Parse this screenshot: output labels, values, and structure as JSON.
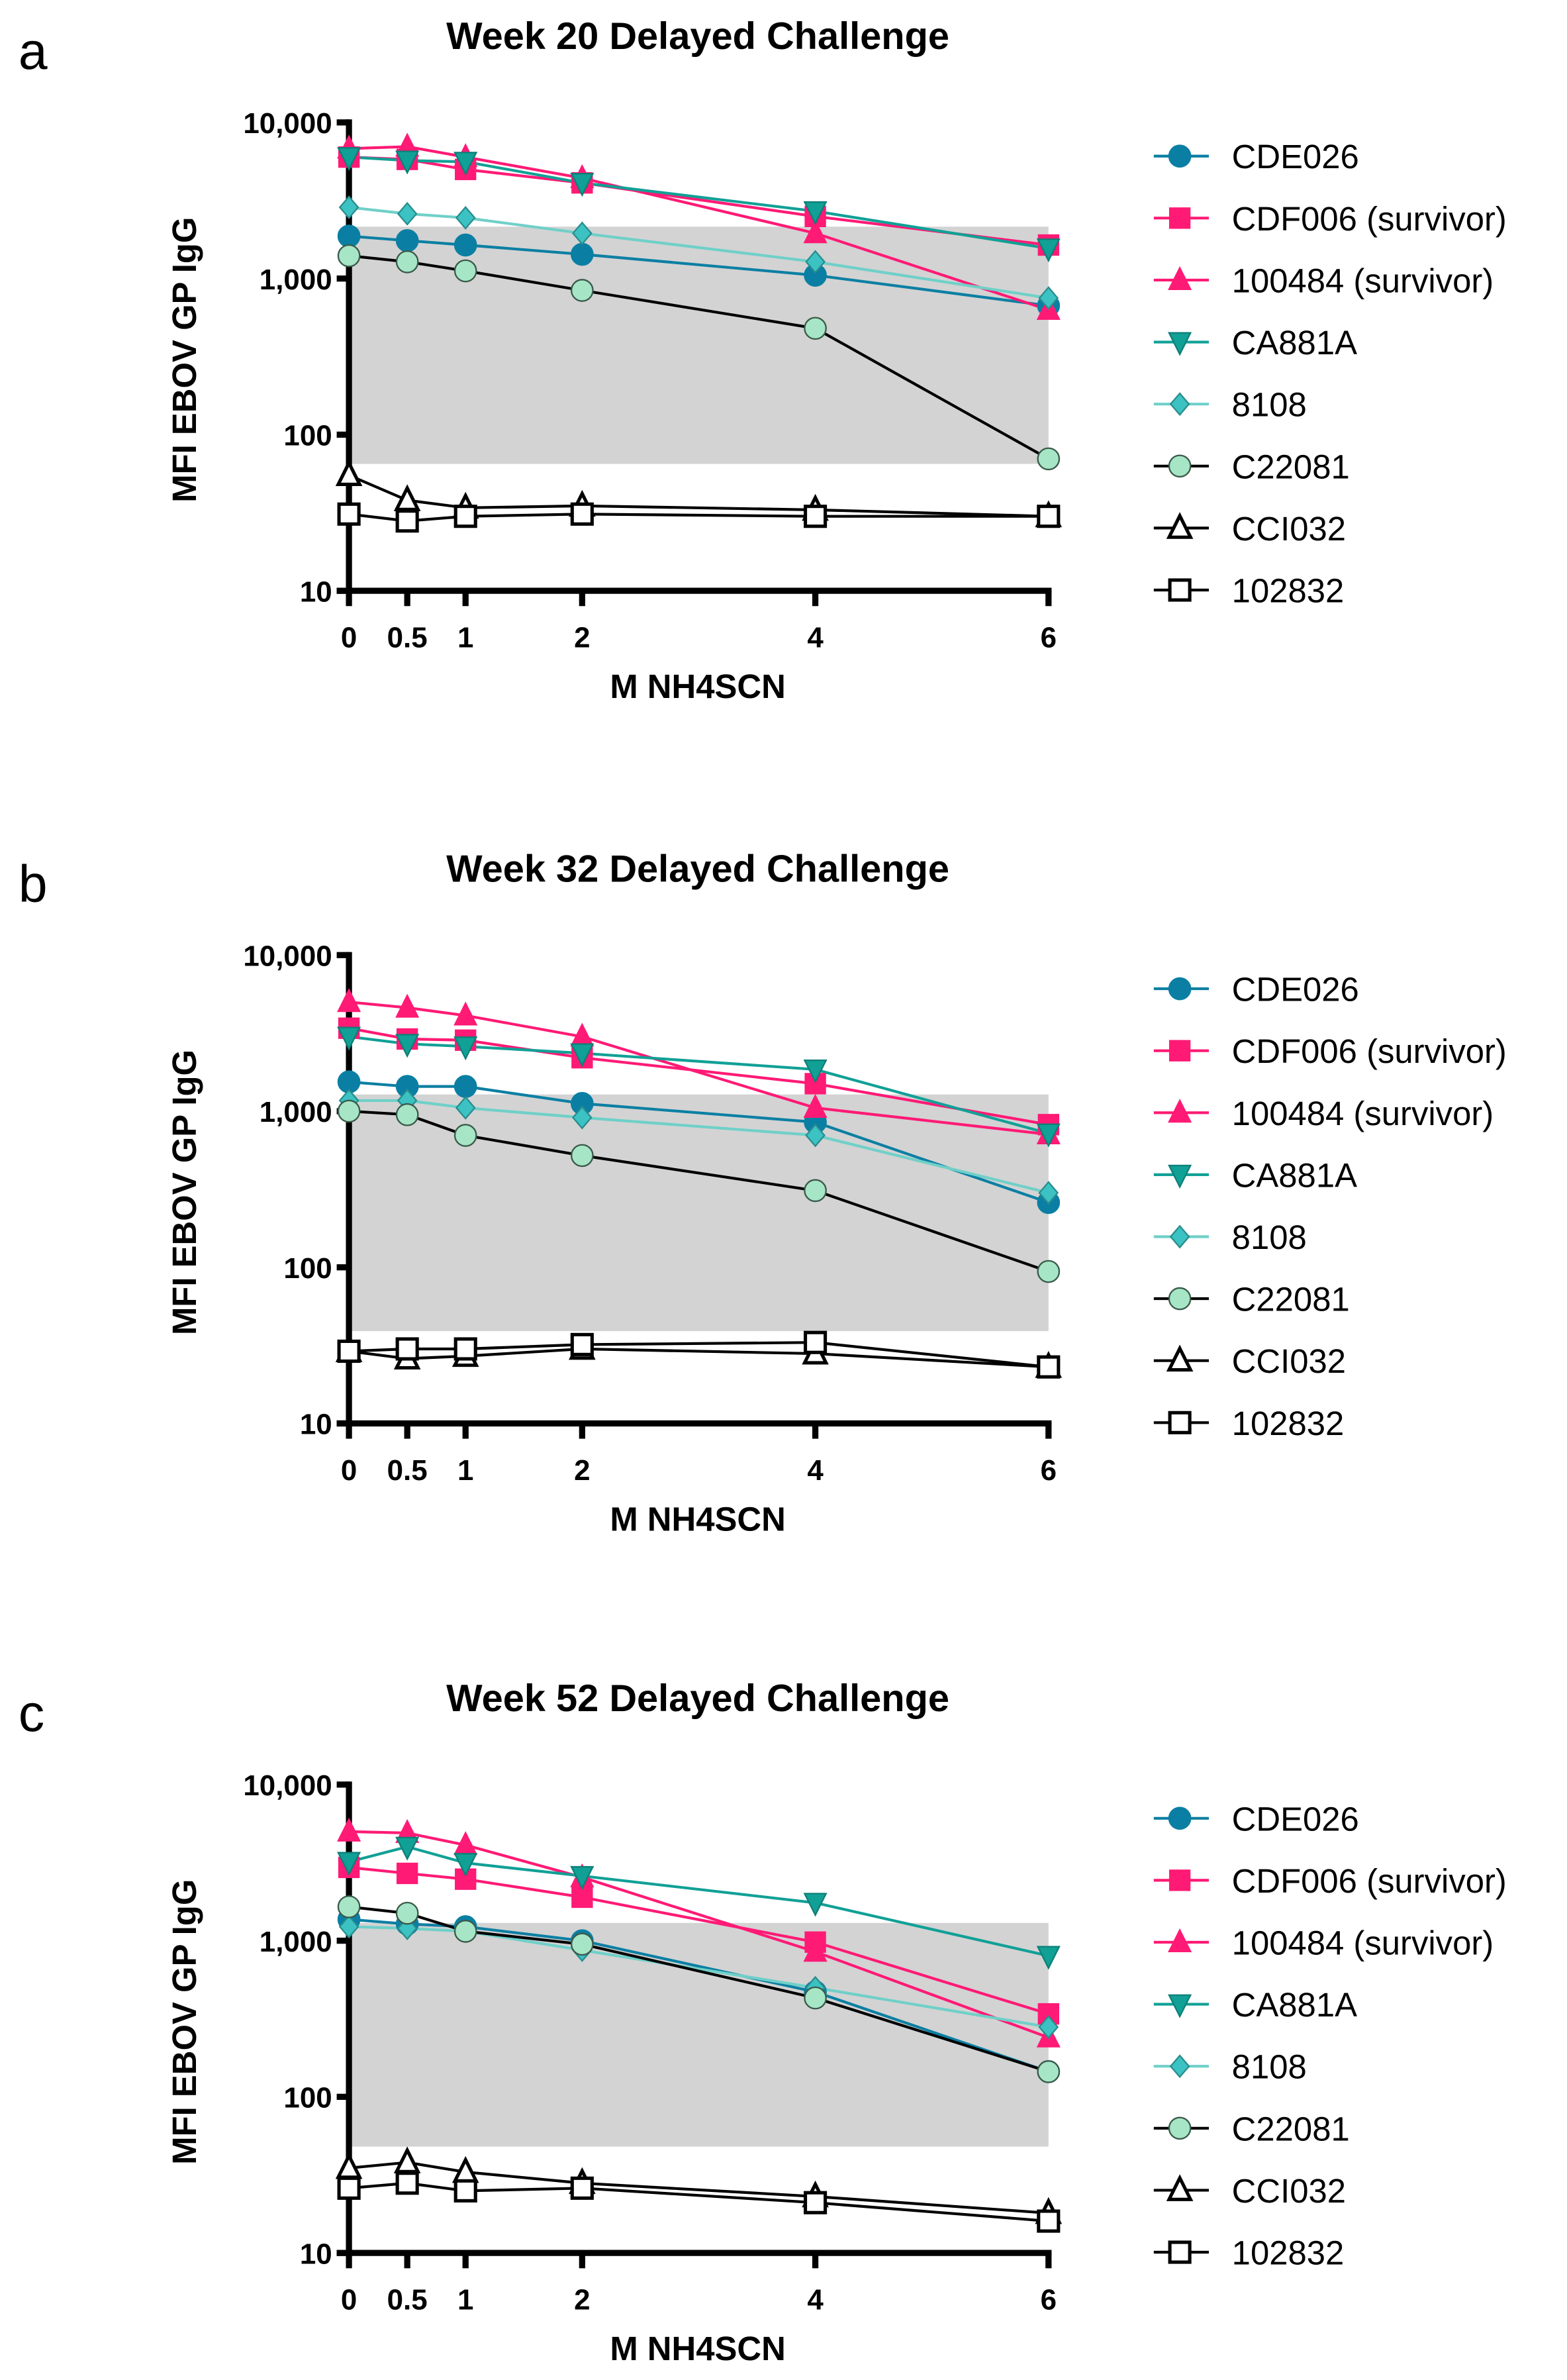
{
  "series_styles": [
    {
      "name": "CDE026",
      "marker": "circle",
      "fill": "#0b7fa3",
      "stroke": "#0b7fa3",
      "line": "#0b7fa3"
    },
    {
      "name": "CDF006 (survivor)",
      "marker": "square",
      "fill": "#ff1a75",
      "stroke": "#ff1a75",
      "line": "#ff1a75"
    },
    {
      "name": "100484 (survivor)",
      "marker": "triangle-up",
      "fill": "#ff1a75",
      "stroke": "#ff1a75",
      "line": "#ff1a75"
    },
    {
      "name": "CA881A",
      "marker": "triangle-down",
      "fill": "#11a096",
      "stroke": "#0e7f78",
      "line": "#11a096"
    },
    {
      "name": "8108",
      "marker": "diamond",
      "fill": "#3cc2c2",
      "stroke": "#2a8d8d",
      "line": "#6fd0c8"
    },
    {
      "name": "C22081",
      "marker": "circle",
      "fill": "#a6e6c6",
      "stroke": "#3a5a4a",
      "line": "#000000"
    },
    {
      "name": "CCI032",
      "marker": "triangle-up-open",
      "fill": "#ffffff",
      "stroke": "#000000",
      "line": "#000000"
    },
    {
      "name": "102832",
      "marker": "square-open",
      "fill": "#ffffff",
      "stroke": "#000000",
      "line": "#000000"
    }
  ],
  "chart_data": [
    {
      "panel_label": "a",
      "type": "line",
      "title": "Week 20 Delayed Challenge",
      "xlabel": "M NH4SCN",
      "ylabel": "MFI EBOV GP IgG",
      "yscale": "log",
      "ylim": [
        10,
        10000
      ],
      "xlim": [
        0,
        6
      ],
      "x": [
        0,
        0.5,
        1,
        2,
        4,
        6
      ],
      "xtick_labels": [
        "0",
        "0.5",
        "1",
        "2",
        "4",
        "6"
      ],
      "ytick_labels": [
        "10",
        "100",
        "1,000",
        "10,000"
      ],
      "grid": false,
      "legend": "right",
      "shaded_band": {
        "color": "#d3d3d3",
        "y_range": [
          65,
          2150
        ]
      },
      "series": [
        {
          "name": "CDE026",
          "values": [
            1870,
            1750,
            1640,
            1430,
            1050,
            670
          ]
        },
        {
          "name": "CDF006 (survivor)",
          "values": [
            6000,
            5800,
            5000,
            4100,
            2500,
            1640
          ]
        },
        {
          "name": "100484 (survivor)",
          "values": [
            6800,
            7000,
            6000,
            4400,
            1950,
            630
          ]
        },
        {
          "name": "CA881A",
          "values": [
            6000,
            5700,
            5600,
            4100,
            2700,
            1560
          ]
        },
        {
          "name": "8108",
          "values": [
            2860,
            2600,
            2450,
            1950,
            1280,
            750
          ]
        },
        {
          "name": "C22081",
          "values": [
            1400,
            1280,
            1120,
            840,
            480,
            70
          ]
        },
        {
          "name": "CCI032",
          "values": [
            55,
            38,
            34,
            35,
            33,
            30
          ]
        },
        {
          "name": "102832",
          "values": [
            31,
            28,
            30,
            31,
            30,
            30
          ]
        }
      ]
    },
    {
      "panel_label": "b",
      "type": "line",
      "title": "Week 32 Delayed Challenge",
      "xlabel": "M NH4SCN",
      "ylabel": "MFI EBOV GP IgG",
      "yscale": "log",
      "ylim": [
        10,
        10000
      ],
      "xlim": [
        0,
        6
      ],
      "x": [
        0,
        0.5,
        1,
        2,
        4,
        6
      ],
      "xtick_labels": [
        "0",
        "0.5",
        "1",
        "2",
        "4",
        "6"
      ],
      "ytick_labels": [
        "10",
        "100",
        "1,000",
        "10,000"
      ],
      "grid": false,
      "legend": "right",
      "shaded_band": {
        "color": "#d3d3d3",
        "y_range": [
          39,
          1280
        ]
      },
      "series": [
        {
          "name": "CDE026",
          "values": [
            1540,
            1440,
            1440,
            1120,
            850,
            260
          ]
        },
        {
          "name": "CDF006 (survivor)",
          "values": [
            3400,
            2900,
            2850,
            2200,
            1500,
            820
          ]
        },
        {
          "name": "100484 (survivor)",
          "values": [
            5000,
            4600,
            4100,
            3000,
            1050,
            710
          ]
        },
        {
          "name": "CA881A",
          "values": [
            3000,
            2700,
            2600,
            2350,
            1850,
            720
          ]
        },
        {
          "name": "8108",
          "values": [
            1170,
            1170,
            1050,
            910,
            700,
            300
          ]
        },
        {
          "name": "C22081",
          "values": [
            1000,
            950,
            700,
            520,
            310,
            94
          ]
        },
        {
          "name": "CCI032",
          "values": [
            29,
            26,
            27,
            30,
            28,
            23
          ]
        },
        {
          "name": "102832",
          "values": [
            29,
            30,
            30,
            32,
            33,
            23
          ]
        }
      ]
    },
    {
      "panel_label": "c",
      "type": "line",
      "title": "Week 52 Delayed Challenge",
      "xlabel": "M NH4SCN",
      "ylabel": "MFI EBOV GP IgG",
      "yscale": "log",
      "ylim": [
        10,
        10000
      ],
      "xlim": [
        0,
        6
      ],
      "x": [
        0,
        0.5,
        1,
        2,
        4,
        6
      ],
      "xtick_labels": [
        "0",
        "0.5",
        "1",
        "2",
        "4",
        "6"
      ],
      "ytick_labels": [
        "10",
        "100",
        "1,000",
        "10,000"
      ],
      "grid": false,
      "legend": "right",
      "shaded_band": {
        "color": "#d3d3d3",
        "y_range": [
          48,
          1300
        ]
      },
      "series": [
        {
          "name": "CDE026",
          "values": [
            1370,
            1280,
            1230,
            1000,
            470,
            145
          ]
        },
        {
          "name": "CDF006 (survivor)",
          "values": [
            2950,
            2700,
            2480,
            1900,
            980,
            340
          ]
        },
        {
          "name": "100484 (survivor)",
          "values": [
            5000,
            4900,
            4100,
            2550,
            850,
            240
          ]
        },
        {
          "name": "CA881A",
          "values": [
            3200,
            4000,
            3150,
            2600,
            1750,
            800
          ]
        },
        {
          "name": "8108",
          "values": [
            1230,
            1200,
            1150,
            870,
            500,
            280
          ]
        },
        {
          "name": "C22081",
          "values": [
            1650,
            1500,
            1150,
            950,
            430,
            145
          ]
        },
        {
          "name": "CCI032",
          "values": [
            35,
            38,
            33,
            28,
            23,
            18
          ]
        },
        {
          "name": "102832",
          "values": [
            26,
            28,
            25,
            26,
            21,
            16
          ]
        }
      ]
    }
  ]
}
